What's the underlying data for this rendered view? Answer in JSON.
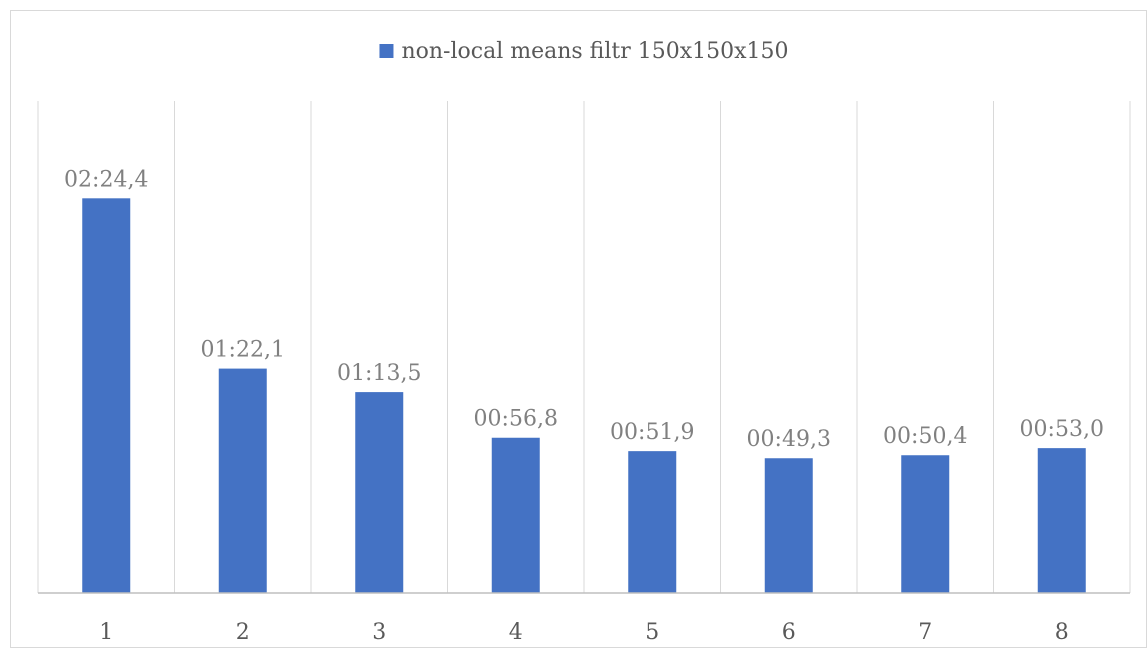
{
  "chart_data": {
    "type": "bar",
    "title": "",
    "xlabel": "",
    "ylabel": "",
    "categories": [
      "1",
      "2",
      "3",
      "4",
      "5",
      "6",
      "7",
      "8"
    ],
    "series": [
      {
        "name": "non-local means filtr 150x150x150",
        "values": [
          144.4,
          82.1,
          73.5,
          56.8,
          51.9,
          49.3,
          50.4,
          53.0
        ],
        "labels": [
          "02:24,4",
          "01:22,1",
          "01:13,5",
          "00:56,8",
          "00:51,9",
          "00:49,3",
          "00:50,4",
          "00:53,0"
        ],
        "color": "#4472c4"
      }
    ],
    "ylim": [
      0,
      180
    ],
    "grid": "vertical category separators",
    "legend": "top-center"
  }
}
